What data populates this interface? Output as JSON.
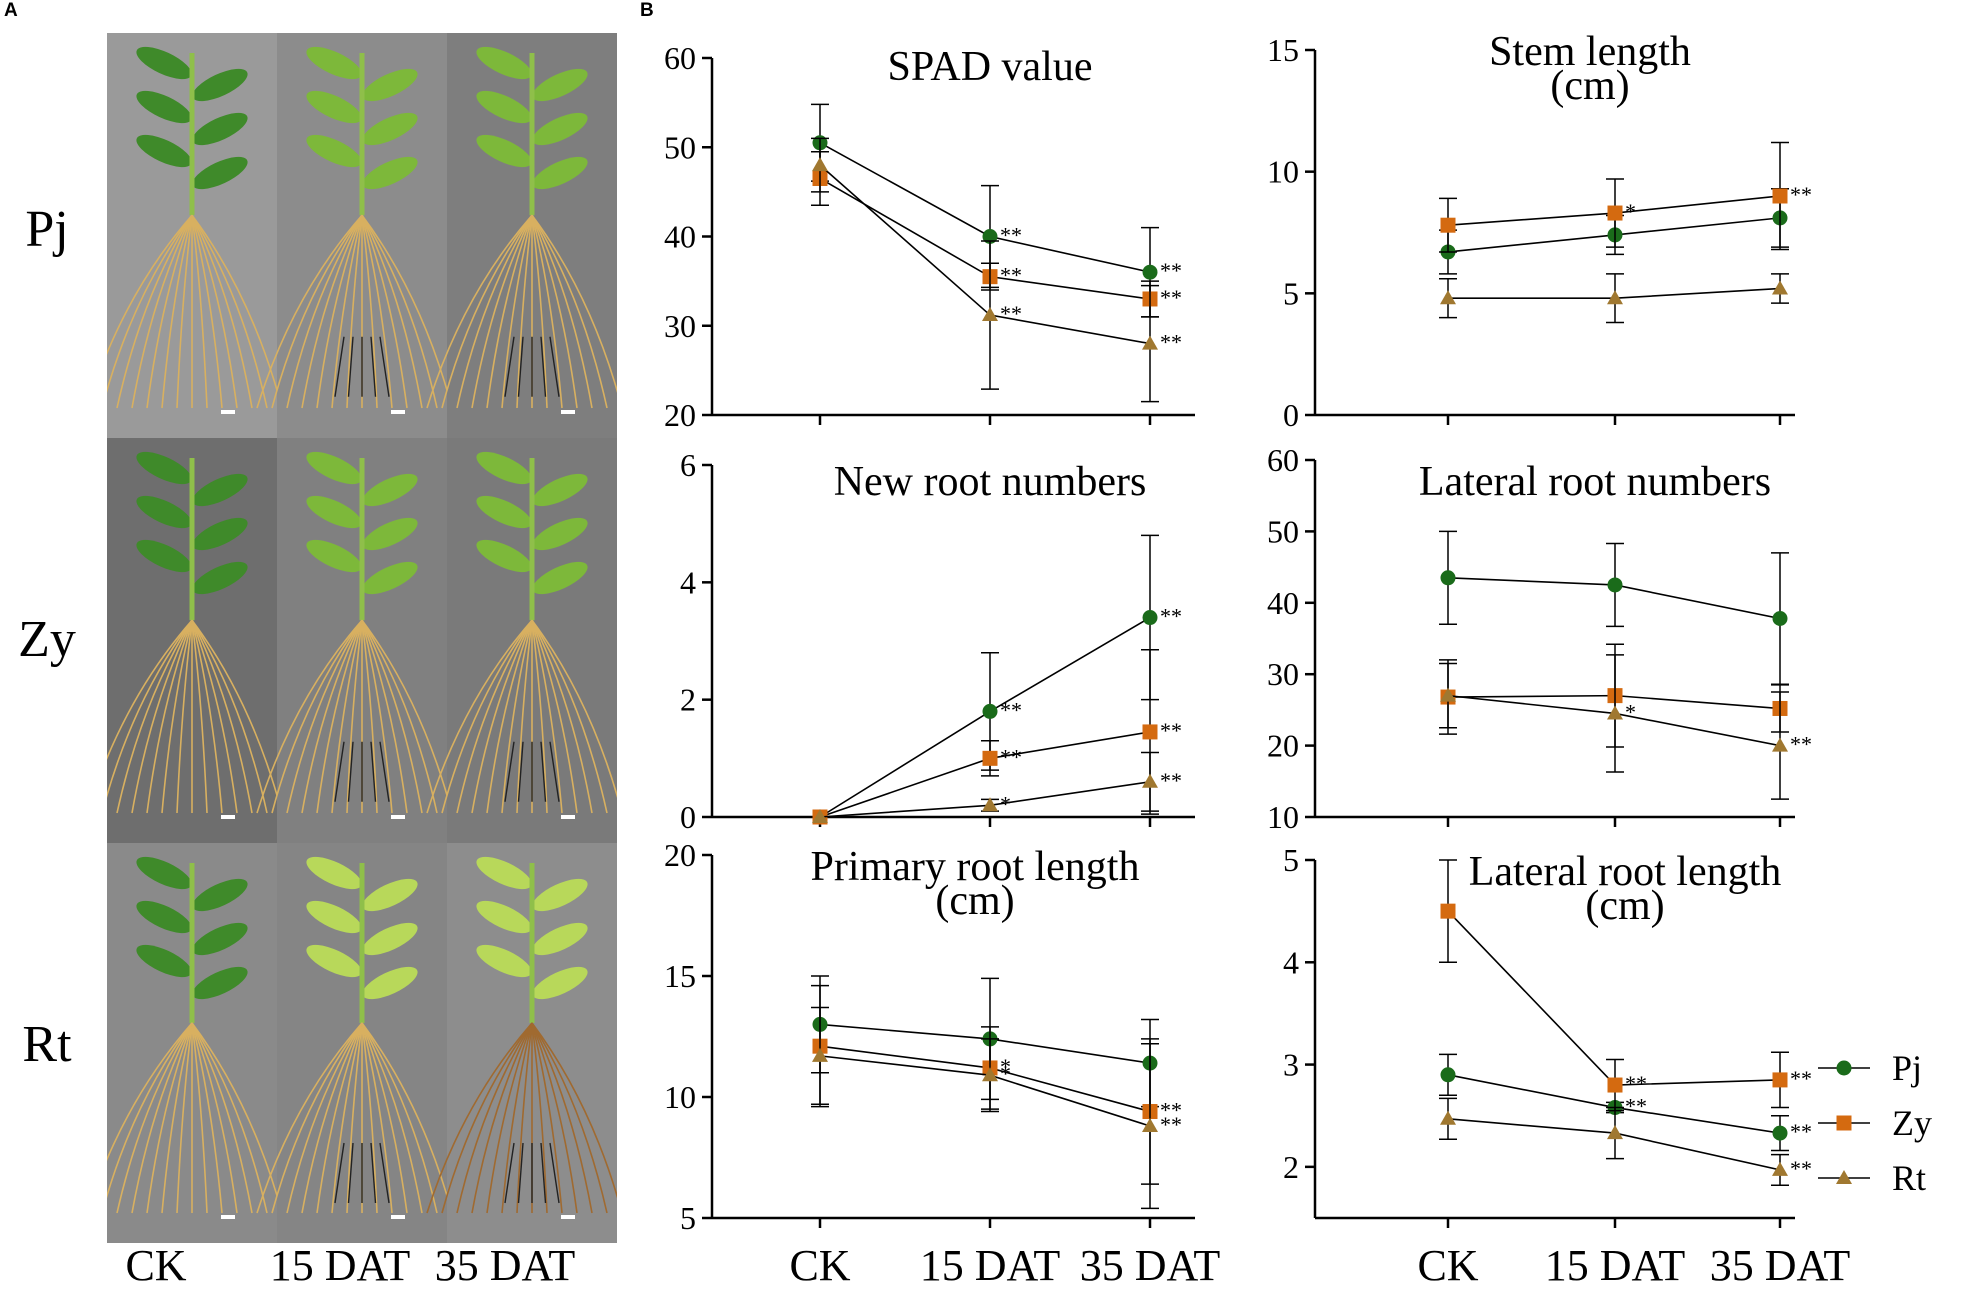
{
  "panels": {
    "a": "A",
    "b": "B"
  },
  "photo_panel": {
    "row_labels": [
      "Pj",
      "Zy",
      "Rt"
    ],
    "column_labels": [
      "CK",
      "15 DAT",
      "35 DAT"
    ]
  },
  "colors": {
    "Pj": "#1a6b1a",
    "Zy": "#d46a10",
    "Rt": "#a07830",
    "axis": "#000000"
  },
  "legend": [
    {
      "name": "Pj",
      "marker": "circle"
    },
    {
      "name": "Zy",
      "marker": "square"
    },
    {
      "name": "Rt",
      "marker": "triangle"
    }
  ],
  "x_categories": [
    "CK",
    "15 DAT",
    "35 DAT"
  ],
  "chart_data": [
    {
      "type": "line",
      "id": "spad",
      "title": [
        "SPAD value"
      ],
      "ylim": [
        20,
        60
      ],
      "yticks": [
        "20",
        "30",
        "40",
        "50",
        "60"
      ],
      "categories": [
        "CK",
        "15 DAT",
        "35 DAT"
      ],
      "series": [
        {
          "name": "Pj",
          "values": [
            50.5,
            40,
            36
          ],
          "errors": [
            4.3,
            5.7,
            5
          ],
          "sig": [
            "",
            "**",
            "**"
          ]
        },
        {
          "name": "Zy",
          "values": [
            46.5,
            35.5,
            33
          ],
          "errors": [
            3,
            1.5,
            2
          ],
          "sig": [
            "",
            "**",
            "**"
          ]
        },
        {
          "name": "Rt",
          "values": [
            48,
            31.2,
            28
          ],
          "errors": [
            3,
            8.3,
            6.5
          ],
          "sig": [
            "",
            "**",
            "**"
          ]
        }
      ]
    },
    {
      "type": "line",
      "id": "stem",
      "title": [
        "Stem length",
        "(cm)"
      ],
      "ylim": [
        0,
        15
      ],
      "yticks": [
        "0",
        "5",
        "10",
        "15"
      ],
      "categories": [
        "CK",
        "15 DAT",
        "35 DAT"
      ],
      "series": [
        {
          "name": "Pj",
          "values": [
            6.7,
            7.4,
            8.1
          ],
          "errors": [
            0.9,
            0.8,
            1.2
          ],
          "sig": [
            "",
            "",
            ""
          ]
        },
        {
          "name": "Zy",
          "values": [
            7.8,
            8.3,
            9
          ],
          "errors": [
            1.1,
            1.4,
            2.2
          ],
          "sig": [
            "",
            "*",
            "**"
          ]
        },
        {
          "name": "Rt",
          "values": [
            4.8,
            4.8,
            5.2
          ],
          "errors": [
            0.8,
            1,
            0.6
          ],
          "sig": [
            "",
            "",
            ""
          ]
        }
      ]
    },
    {
      "type": "line",
      "id": "newroot",
      "title": [
        "New root numbers"
      ],
      "ylim": [
        0,
        6
      ],
      "yticks": [
        "0",
        "2",
        "4",
        "6"
      ],
      "categories": [
        "CK",
        "15 DAT",
        "35 DAT"
      ],
      "series": [
        {
          "name": "Pj",
          "values": [
            0,
            1.8,
            3.4
          ],
          "errors": [
            0,
            1,
            1.4
          ],
          "sig": [
            "",
            "**",
            "**"
          ]
        },
        {
          "name": "Zy",
          "values": [
            0,
            1,
            1.45
          ],
          "errors": [
            0,
            0.3,
            1.4
          ],
          "sig": [
            "",
            "**",
            "**"
          ]
        },
        {
          "name": "Rt",
          "values": [
            0,
            0.2,
            0.6
          ],
          "errors": [
            0,
            0.1,
            0.5
          ],
          "sig": [
            "",
            "*",
            "**"
          ]
        }
      ]
    },
    {
      "type": "line",
      "id": "lateralnum",
      "title": [
        "Lateral root numbers"
      ],
      "ylim": [
        10,
        60
      ],
      "yticks": [
        "10",
        "20",
        "30",
        "40",
        "50",
        "60"
      ],
      "categories": [
        "CK",
        "15 DAT",
        "35 DAT"
      ],
      "series": [
        {
          "name": "Pj",
          "values": [
            43.5,
            42.5,
            37.8
          ],
          "errors": [
            6.5,
            5.8,
            9.2
          ],
          "sig": [
            "",
            "",
            ""
          ]
        },
        {
          "name": "Zy",
          "values": [
            26.8,
            27,
            25.2
          ],
          "errors": [
            5.2,
            7.2,
            3.3
          ],
          "sig": [
            "",
            "",
            ""
          ]
        },
        {
          "name": "Rt",
          "values": [
            27,
            24.5,
            20
          ],
          "errors": [
            4.5,
            8.2,
            7.5
          ],
          "sig": [
            "",
            "*",
            "**"
          ]
        }
      ]
    },
    {
      "type": "line",
      "id": "primary",
      "title": [
        "Primary root length",
        "(cm)"
      ],
      "ylim": [
        5,
        20
      ],
      "yticks": [
        "5",
        "10",
        "15",
        "20"
      ],
      "categories": [
        "CK",
        "15 DAT",
        "35 DAT"
      ],
      "series": [
        {
          "name": "Pj",
          "values": [
            13,
            12.4,
            11.4
          ],
          "errors": [
            2,
            2.5,
            1.8
          ],
          "sig": [
            "",
            "",
            ""
          ]
        },
        {
          "name": "Zy",
          "values": [
            12.1,
            11.2,
            9.4
          ],
          "errors": [
            2.5,
            1.7,
            3
          ],
          "sig": [
            "",
            "*",
            "**"
          ]
        },
        {
          "name": "Rt",
          "values": [
            11.7,
            10.9,
            8.8
          ],
          "errors": [
            2,
            1.5,
            3.4
          ],
          "sig": [
            "",
            "*",
            "**"
          ]
        }
      ]
    },
    {
      "type": "line",
      "id": "lateral",
      "title": [
        "Lateral root length",
        "(cm)"
      ],
      "ylim": [
        1.5,
        5
      ],
      "yticks": [
        "2",
        "3",
        "4",
        "5"
      ],
      "categories": [
        "CK",
        "15 DAT",
        "35 DAT"
      ],
      "series": [
        {
          "name": "Pj",
          "values": [
            2.9,
            2.58,
            2.33
          ],
          "errors": [
            0.2,
            0.05,
            0.17
          ],
          "sig": [
            "",
            "**",
            "**"
          ]
        },
        {
          "name": "Zy",
          "values": [
            4.5,
            2.8,
            2.85
          ],
          "errors": [
            0.5,
            0.25,
            0.27
          ],
          "sig": [
            "",
            "**",
            "**"
          ]
        },
        {
          "name": "Rt",
          "values": [
            2.47,
            2.33,
            1.97
          ],
          "errors": [
            0.2,
            0.25,
            0.15
          ],
          "sig": [
            "",
            "",
            "**"
          ]
        }
      ]
    }
  ]
}
